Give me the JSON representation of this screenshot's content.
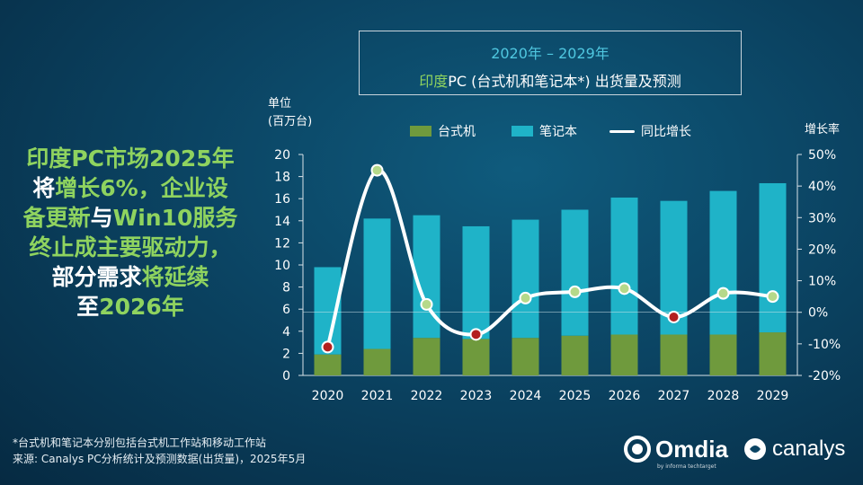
{
  "title": {
    "line1": "2020年 – 2029年",
    "line2_highlight": "印度",
    "line2_rest": "PC (台式机和笔记本*) 出货量及预测"
  },
  "callout": {
    "l1": "印度PC市场2025年",
    "l2a": "将",
    "l2b": "增长6%，企业设",
    "l3a": "备更新",
    "l3b": "与",
    "l3c": "Win10服务",
    "l4": "终止成主要驱动力，",
    "l5a": "部分需求",
    "l5b": "将延续",
    "l6a": "至",
    "l6b": "2026年"
  },
  "left_axis_label": [
    "单位",
    "(百万台)"
  ],
  "right_axis_label": "增长率",
  "legend": {
    "desktop": "台式机",
    "notebook": "笔记本",
    "growth": "同比增长"
  },
  "footnote": {
    "line1": "*台式机和笔记本分别包括台式机工作站和移动工作站",
    "line2": "来源: Canalys PC分析统计及预测数据(出货量)，2025年5月"
  },
  "logos": {
    "omdia": "Omdia",
    "omdia_sub": "by informa techtarget",
    "canalys": "canalys"
  },
  "colors": {
    "desktop": "#6f9a3d",
    "notebook": "#1fb3c8",
    "line": "#ffffff",
    "marker_positive": "#b5d98a",
    "marker_negative": "#b3201f",
    "accent_green": "#8fd35f",
    "accent_cyan": "#4fc7e0"
  },
  "chart_data": {
    "type": "bar",
    "stacked": true,
    "categories": [
      "2020",
      "2021",
      "2022",
      "2023",
      "2024",
      "2025",
      "2026",
      "2027",
      "2028",
      "2029"
    ],
    "series": [
      {
        "name": "台式机",
        "axis": "left",
        "values": [
          1.9,
          2.4,
          3.4,
          3.3,
          3.4,
          3.6,
          3.7,
          3.7,
          3.7,
          3.9
        ]
      },
      {
        "name": "笔记本",
        "axis": "left",
        "values": [
          7.9,
          11.8,
          11.1,
          10.2,
          10.7,
          11.4,
          12.4,
          12.1,
          13.0,
          13.5
        ]
      },
      {
        "name": "同比增长",
        "type": "line",
        "axis": "right",
        "unit": "%",
        "values": [
          -11,
          45,
          2.5,
          -7,
          4.5,
          6.5,
          7.5,
          -1.5,
          6,
          5
        ]
      }
    ],
    "ylim": [
      0,
      20
    ],
    "yticks": [
      0,
      2,
      4,
      6,
      8,
      10,
      12,
      14,
      16,
      18,
      20
    ],
    "y2lim": [
      -20,
      50
    ],
    "y2ticks": [
      "-20%",
      "-10%",
      "0%",
      "10%",
      "20%",
      "30%",
      "40%",
      "50%"
    ],
    "grid": false,
    "legend_position": "top"
  }
}
